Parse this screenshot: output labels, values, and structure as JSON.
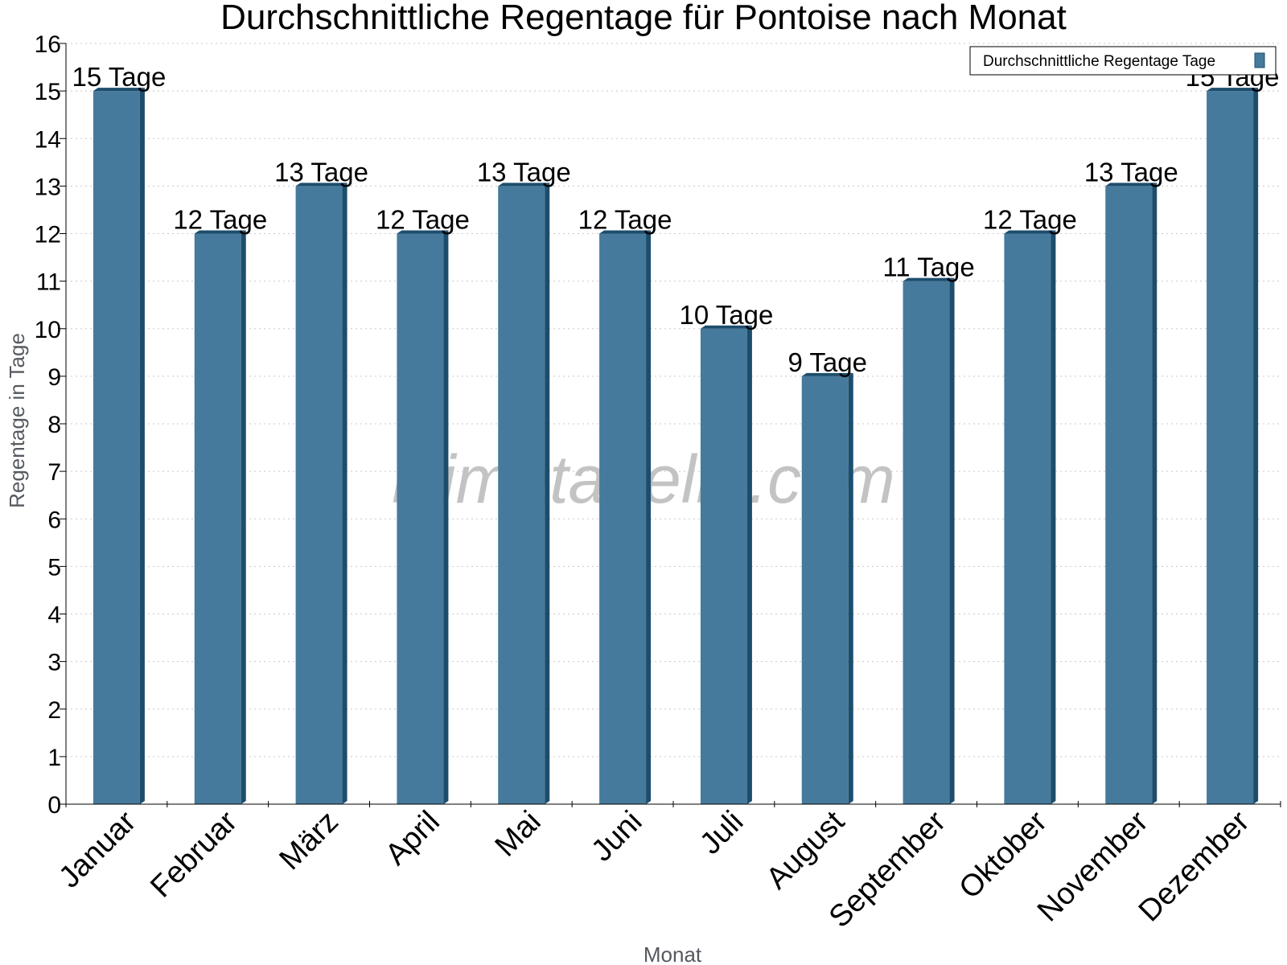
{
  "chart_data": {
    "type": "bar",
    "title": "Durchschnittliche Regentage für Pontoise nach Monat",
    "xlabel": "Monat",
    "ylabel": "Regentage in Tage",
    "categories": [
      "Januar",
      "Februar",
      "März",
      "April",
      "Mai",
      "Juni",
      "Juli",
      "August",
      "September",
      "Oktober",
      "November",
      "Dezember"
    ],
    "series": [
      {
        "name": "Durchschnittliche Regentage Tage",
        "values": [
          15,
          12,
          13,
          12,
          13,
          12,
          10,
          9,
          11,
          12,
          13,
          15
        ],
        "data_labels": [
          "15 Tage",
          "12 Tage",
          "13 Tage",
          "12 Tage",
          "13 Tage",
          "12 Tage",
          "10 Tage",
          "9 Tage",
          "11 Tage",
          "12 Tage",
          "13 Tage",
          "15 Tage"
        ]
      }
    ],
    "ylim": [
      0,
      16
    ],
    "yticks": [
      "0",
      "1",
      "2",
      "3",
      "4",
      "5",
      "6",
      "7",
      "8",
      "9",
      "10",
      "11",
      "12",
      "13",
      "14",
      "15",
      "16"
    ],
    "grid": true,
    "legend_position": "top-right",
    "watermark": "klimatabelle.com",
    "colors": {
      "bar": "#467a9c",
      "bar_side": "#1d4d6c",
      "bar_top": "#1d4d6c",
      "grid": "#c8c8c8",
      "axis": "#000000"
    }
  }
}
